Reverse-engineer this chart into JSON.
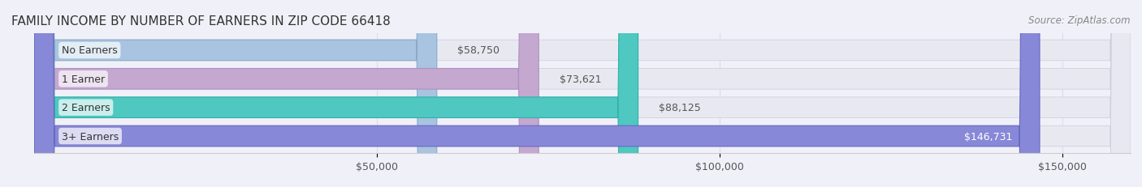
{
  "title": "FAMILY INCOME BY NUMBER OF EARNERS IN ZIP CODE 66418",
  "source": "Source: ZipAtlas.com",
  "categories": [
    "No Earners",
    "1 Earner",
    "2 Earners",
    "3+ Earners"
  ],
  "values": [
    58750,
    73621,
    88125,
    146731
  ],
  "bar_colors": [
    "#a8c4e0",
    "#c4a8d0",
    "#4ec8c0",
    "#8888d8"
  ],
  "bar_edge_colors": [
    "#88aac8",
    "#b090c0",
    "#30b0a8",
    "#6868c0"
  ],
  "label_colors": [
    "#555555",
    "#555555",
    "#555555",
    "#ffffff"
  ],
  "xlim": [
    0,
    160000
  ],
  "xticks": [
    50000,
    100000,
    150000
  ],
  "xtick_labels": [
    "$50,000",
    "$100,000",
    "$150,000"
  ],
  "bg_color": "#f0f0f8",
  "bar_bg_color": "#e8e8f0",
  "bar_height": 0.72,
  "title_fontsize": 11,
  "label_fontsize": 9,
  "value_fontsize": 9,
  "source_fontsize": 8.5
}
